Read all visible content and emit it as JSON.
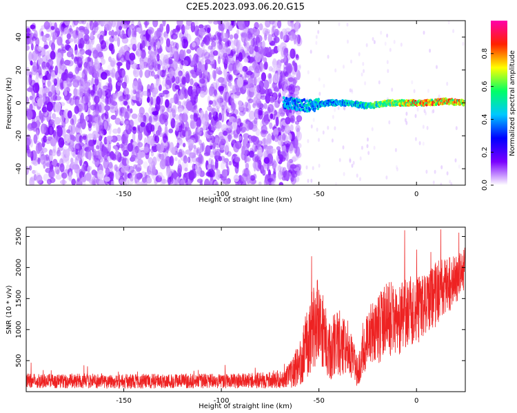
{
  "title": "C2E5.2023.093.06.20.G15",
  "chart_data": [
    {
      "type": "heatmap",
      "xlabel": "Height of straight line (km)",
      "ylabel": "Frequency (Hz)",
      "xlim": [
        -200,
        25
      ],
      "ylim": [
        -50,
        50
      ],
      "xticks": [
        -150,
        -100,
        -50,
        0
      ],
      "yticks": [
        -40,
        -20,
        0,
        20,
        40
      ],
      "colorbar": {
        "label": "Normalized spectral amplitude",
        "range": [
          0,
          1
        ],
        "ticks": [
          "0.0",
          "0.2",
          "0.4",
          "0.6",
          "0.8"
        ],
        "colormap": [
          "#ffffff",
          "#7a00ff",
          "#0000ff",
          "#00c8ff",
          "#00ff66",
          "#ffff00",
          "#ff2200",
          "#ff00aa"
        ]
      },
      "description_points": [
        {
          "x": -65,
          "y": 0,
          "amp": 0.45
        },
        {
          "x": -55,
          "y": -2,
          "amp": 0.5
        },
        {
          "x": -45,
          "y": 0,
          "amp": 0.45
        },
        {
          "x": -35,
          "y": 0,
          "amp": 0.5
        },
        {
          "x": -25,
          "y": -2,
          "amp": 0.55
        },
        {
          "x": -15,
          "y": 0,
          "amp": 0.7
        },
        {
          "x": -5,
          "y": 0,
          "amp": 0.8
        },
        {
          "x": 5,
          "y": 0,
          "amp": 0.85
        },
        {
          "x": 15,
          "y": 1,
          "amp": 0.85
        },
        {
          "x": 25,
          "y": 0,
          "amp": 0.8
        }
      ]
    },
    {
      "type": "line",
      "xlabel": "Height of straight line (km)",
      "ylabel": "SNR (10 * v/v)",
      "xlim": [
        -200,
        25
      ],
      "ylim": [
        0,
        2650
      ],
      "xticks": [
        -150,
        -100,
        -50,
        0
      ],
      "yticks": [
        500,
        1000,
        1500,
        2000,
        2500
      ],
      "series": [
        {
          "color": "#ee2222",
          "x": [
            -200,
            -190,
            -180,
            -170,
            -160,
            -150,
            -140,
            -130,
            -120,
            -110,
            -100,
            -90,
            -80,
            -70,
            -65,
            -60,
            -55,
            -50,
            -45,
            -40,
            -35,
            -30,
            -25,
            -20,
            -15,
            -10,
            -5,
            0,
            5,
            10,
            15,
            20,
            25
          ],
          "y": [
            180,
            175,
            170,
            175,
            170,
            165,
            170,
            170,
            175,
            170,
            170,
            175,
            180,
            190,
            260,
            450,
            900,
            1200,
            650,
            800,
            700,
            300,
            900,
            1000,
            1200,
            1100,
            1300,
            1300,
            1400,
            1600,
            1700,
            1800,
            2000
          ],
          "spread": [
            150,
            150,
            150,
            150,
            150,
            150,
            150,
            150,
            150,
            150,
            150,
            150,
            160,
            170,
            250,
            450,
            800,
            900,
            600,
            700,
            500,
            300,
            600,
            700,
            800,
            700,
            700,
            700,
            600,
            700,
            600,
            500,
            400
          ]
        }
      ]
    }
  ]
}
